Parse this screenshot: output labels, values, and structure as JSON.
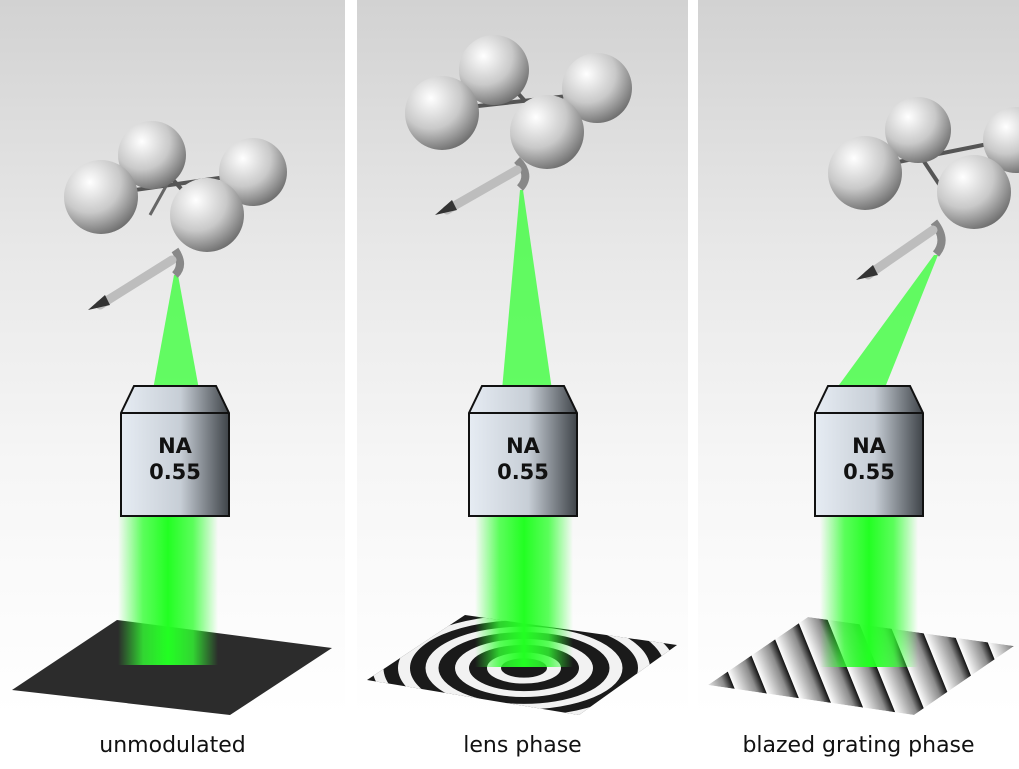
{
  "colors": {
    "beam": "#33ff33",
    "panel_top": "#d2d2d2",
    "objective_light": "#dfe6ee",
    "objective_dark": "#4a4f55"
  },
  "panels": [
    {
      "caption": "unmodulated",
      "objective": {
        "line1": "NA",
        "line2": "0.55"
      },
      "pattern": "flat"
    },
    {
      "caption": "lens phase",
      "objective": {
        "line1": "NA",
        "line2": "0.55"
      },
      "pattern": "concentric-rings"
    },
    {
      "caption": "blazed grating phase",
      "objective": {
        "line1": "NA",
        "line2": "0.55"
      },
      "pattern": "diagonal-stripes"
    }
  ]
}
